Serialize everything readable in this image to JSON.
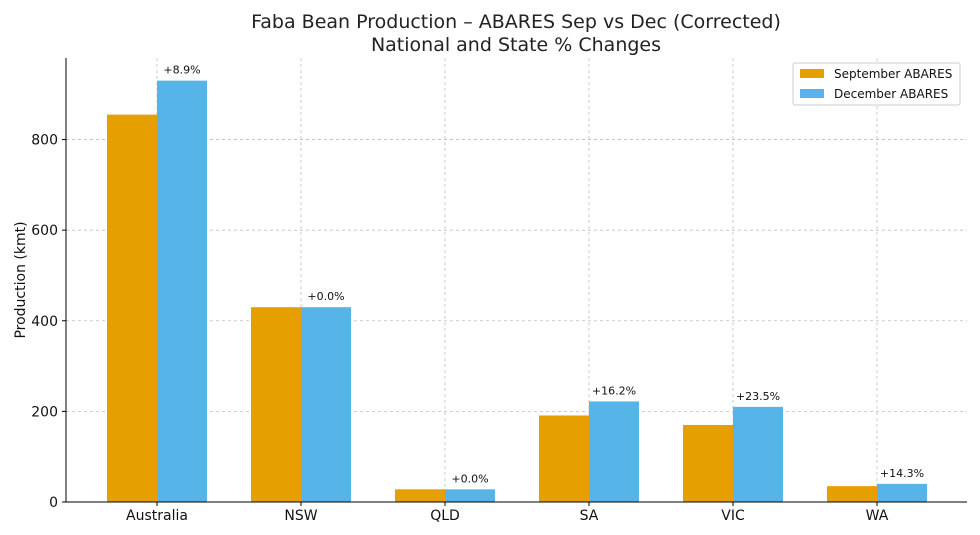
{
  "chart_data": {
    "type": "bar",
    "title": "Faba Bean Production – ABARES Sep vs Dec (Corrected)",
    "subtitle": "National and State % Changes",
    "xlabel": "",
    "ylabel": "Production (kmt)",
    "ylim": [
      0,
      980
    ],
    "yticks": [
      "0",
      "200",
      "400",
      "600",
      "800"
    ],
    "ytick_values": [
      0,
      200,
      400,
      600,
      800
    ],
    "grid": true,
    "legend_position": "top-right",
    "categories": [
      "Australia",
      "NSW",
      "QLD",
      "SA",
      "VIC",
      "WA"
    ],
    "series": [
      {
        "name": "September ABARES",
        "color": "#E69F00",
        "values": [
          855,
          430,
          28,
          191,
          170,
          35
        ]
      },
      {
        "name": "December ABARES",
        "color": "#56B4E9",
        "values": [
          930,
          430,
          28,
          222,
          210,
          40
        ]
      }
    ],
    "change_labels": [
      "+8.9%",
      "+0.0%",
      "+0.0%",
      "+16.2%",
      "+23.5%",
      "+14.3%"
    ]
  }
}
